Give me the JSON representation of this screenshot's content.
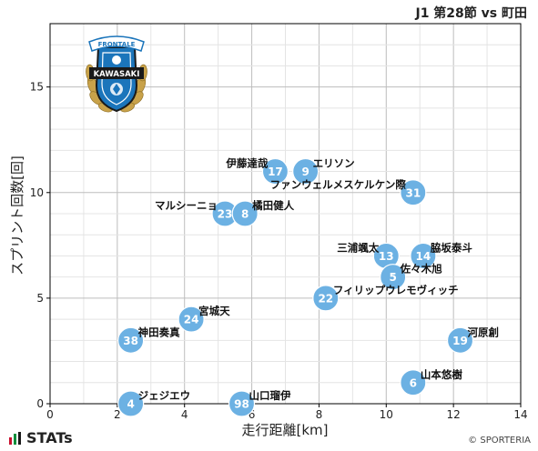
{
  "title": "J1 第28節 vs 町田",
  "footer": {
    "brand": "STATs",
    "copyright": "© SPORTERIA"
  },
  "crest": {
    "top_text": "FRONTALE",
    "main_text": "KAWASAKI",
    "colors": {
      "blue": "#1b75bb",
      "gold": "#c8a24a",
      "black": "#1a1a1a"
    }
  },
  "colors": {
    "marker": "#6cb1e3",
    "marker_text": "#ffffff",
    "grid": "#c9c9c9",
    "axis": "#000000"
  },
  "chart_data": {
    "type": "scatter",
    "xlabel": "走行距離[km]",
    "ylabel": "スプリント回数[回]",
    "xlim": [
      0,
      14
    ],
    "ylim": [
      0,
      18
    ],
    "x_ticks": [
      0,
      2,
      4,
      6,
      8,
      10,
      12,
      14
    ],
    "y_ticks": [
      0,
      5,
      10,
      15
    ],
    "grid": true,
    "points": [
      {
        "number": "17",
        "name": "伊藤達哉",
        "x": 6.7,
        "y": 11,
        "label_side": "left"
      },
      {
        "number": "9",
        "name": "エリソン",
        "x": 7.6,
        "y": 11,
        "label_side": "right"
      },
      {
        "number": "31",
        "name": "ファンウェルメスケルケン際",
        "x": 10.8,
        "y": 10,
        "label_side": "left"
      },
      {
        "number": "23",
        "name": "マルシーニョ",
        "x": 5.2,
        "y": 9,
        "label_side": "left"
      },
      {
        "number": "8",
        "name": "橘田健人",
        "x": 5.8,
        "y": 9,
        "label_side": "right"
      },
      {
        "number": "13",
        "name": "三浦颯太",
        "x": 10.0,
        "y": 7,
        "label_side": "left"
      },
      {
        "number": "14",
        "name": "脇坂泰斗",
        "x": 11.1,
        "y": 7,
        "label_side": "right"
      },
      {
        "number": "5",
        "name": "佐々木旭",
        "x": 10.2,
        "y": 6,
        "label_side": "right"
      },
      {
        "number": "22",
        "name": "フィリップウレモヴィッチ",
        "x": 8.2,
        "y": 5,
        "label_side": "right"
      },
      {
        "number": "24",
        "name": "宮城天",
        "x": 4.2,
        "y": 4,
        "label_side": "right"
      },
      {
        "number": "38",
        "name": "神田奏真",
        "x": 2.4,
        "y": 3,
        "label_side": "right"
      },
      {
        "number": "19",
        "name": "河原創",
        "x": 12.2,
        "y": 3,
        "label_side": "right"
      },
      {
        "number": "6",
        "name": "山本悠樹",
        "x": 10.8,
        "y": 1,
        "label_side": "right"
      },
      {
        "number": "4",
        "name": "ジェジエウ",
        "x": 2.4,
        "y": 0,
        "label_side": "right"
      },
      {
        "number": "98",
        "name": "山口瑠伊",
        "x": 5.7,
        "y": 0,
        "label_side": "right"
      }
    ]
  }
}
